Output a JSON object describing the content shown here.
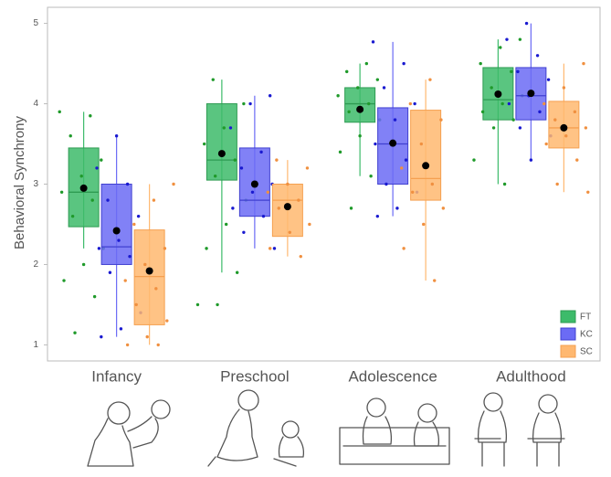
{
  "chart_data": {
    "type": "box",
    "y_label": "Behavioral Synchrony",
    "categories": [
      "Infancy",
      "Preschool",
      "Adolescence",
      "Adulthood"
    ],
    "ylim": [
      0.8,
      5.2
    ],
    "yticks": [
      1,
      2,
      3,
      4,
      5
    ],
    "legend": "bottom-right",
    "series": [
      {
        "name": "FT",
        "color": "#3dbb6a",
        "edge": "#2e9b52",
        "point_color": "#1f9a2a",
        "boxes": [
          {
            "whisker_low": 2.2,
            "q1": 2.47,
            "median": 2.9,
            "q3": 3.45,
            "whisker_high": 3.9,
            "mean": 2.95,
            "points": [
              3.9,
              3.85,
              3.6,
              3.3,
              3.1,
              2.9,
              2.8,
              2.6,
              2.2,
              2.0,
              1.8,
              1.6,
              1.15
            ]
          },
          {
            "whisker_low": 1.9,
            "q1": 3.05,
            "median": 3.3,
            "q3": 4.0,
            "whisker_high": 4.3,
            "mean": 3.38,
            "points": [
              4.3,
              4.0,
              3.7,
              3.5,
              3.3,
              3.1,
              2.8,
              2.5,
              2.2,
              1.9,
              1.5,
              1.5
            ]
          },
          {
            "whisker_low": 3.1,
            "q1": 3.77,
            "median": 4.0,
            "q3": 4.2,
            "whisker_high": 4.5,
            "mean": 3.93,
            "points": [
              4.5,
              4.4,
              4.3,
              4.2,
              4.1,
              4.0,
              3.9,
              3.8,
              3.6,
              3.4,
              3.1,
              2.7
            ]
          },
          {
            "whisker_low": 3.0,
            "q1": 3.8,
            "median": 4.05,
            "q3": 4.45,
            "whisker_high": 4.8,
            "mean": 4.12,
            "points": [
              4.8,
              4.7,
              4.5,
              4.4,
              4.2,
              4.1,
              4.0,
              3.9,
              3.8,
              3.7,
              3.3,
              3.0
            ]
          }
        ]
      },
      {
        "name": "KC",
        "color": "#6b6bf5",
        "edge": "#4040d0",
        "point_color": "#1a1ad0",
        "boxes": [
          {
            "whisker_low": 1.1,
            "q1": 2.0,
            "median": 2.22,
            "q3": 3.0,
            "whisker_high": 3.6,
            "mean": 2.42,
            "points": [
              3.6,
              3.2,
              3.0,
              2.8,
              2.6,
              2.3,
              2.2,
              2.1,
              1.9,
              1.4,
              1.2,
              1.1
            ]
          },
          {
            "whisker_low": 2.2,
            "q1": 2.6,
            "median": 2.8,
            "q3": 3.45,
            "whisker_high": 4.1,
            "mean": 3.0,
            "points": [
              4.1,
              4.0,
              3.7,
              3.4,
              3.2,
              3.0,
              2.9,
              2.7,
              2.6,
              2.4,
              2.2
            ]
          },
          {
            "whisker_low": 2.6,
            "q1": 3.0,
            "median": 3.5,
            "q3": 3.95,
            "whisker_high": 4.77,
            "mean": 3.51,
            "points": [
              4.77,
              4.5,
              4.2,
              4.0,
              3.8,
              3.5,
              3.3,
              3.0,
              2.9,
              2.7,
              2.6
            ]
          },
          {
            "whisker_low": 3.3,
            "q1": 3.8,
            "median": 4.1,
            "q3": 4.45,
            "whisker_high": 5.0,
            "mean": 4.13,
            "points": [
              5.0,
              4.8,
              4.6,
              4.4,
              4.3,
              4.1,
              4.0,
              3.9,
              3.7,
              3.6,
              3.3
            ]
          }
        ]
      },
      {
        "name": "SC",
        "color": "#ffb870",
        "edge": "#f5a050",
        "point_color": "#f09040",
        "boxes": [
          {
            "whisker_low": 1.0,
            "q1": 1.25,
            "median": 1.85,
            "q3": 2.43,
            "whisker_high": 3.0,
            "mean": 1.92,
            "points": [
              3.0,
              2.8,
              2.5,
              2.2,
              2.0,
              1.8,
              1.7,
              1.5,
              1.3,
              1.1,
              1.0,
              1.0
            ]
          },
          {
            "whisker_low": 2.1,
            "q1": 2.35,
            "median": 2.8,
            "q3": 3.0,
            "whisker_high": 3.3,
            "mean": 2.72,
            "points": [
              3.3,
              3.2,
              3.0,
              2.9,
              2.8,
              2.7,
              2.5,
              2.4,
              2.2,
              2.1
            ]
          },
          {
            "whisker_low": 1.8,
            "q1": 2.8,
            "median": 3.07,
            "q3": 3.92,
            "whisker_high": 4.3,
            "mean": 3.23,
            "points": [
              4.3,
              4.0,
              3.8,
              3.5,
              3.2,
              3.0,
              2.9,
              2.7,
              2.5,
              2.2,
              1.8
            ]
          },
          {
            "whisker_low": 2.9,
            "q1": 3.45,
            "median": 3.7,
            "q3": 4.03,
            "whisker_high": 4.5,
            "mean": 3.7,
            "points": [
              4.5,
              4.2,
              4.0,
              3.9,
              3.8,
              3.7,
              3.6,
              3.5,
              3.3,
              3.0,
              2.9
            ]
          }
        ]
      }
    ]
  }
}
